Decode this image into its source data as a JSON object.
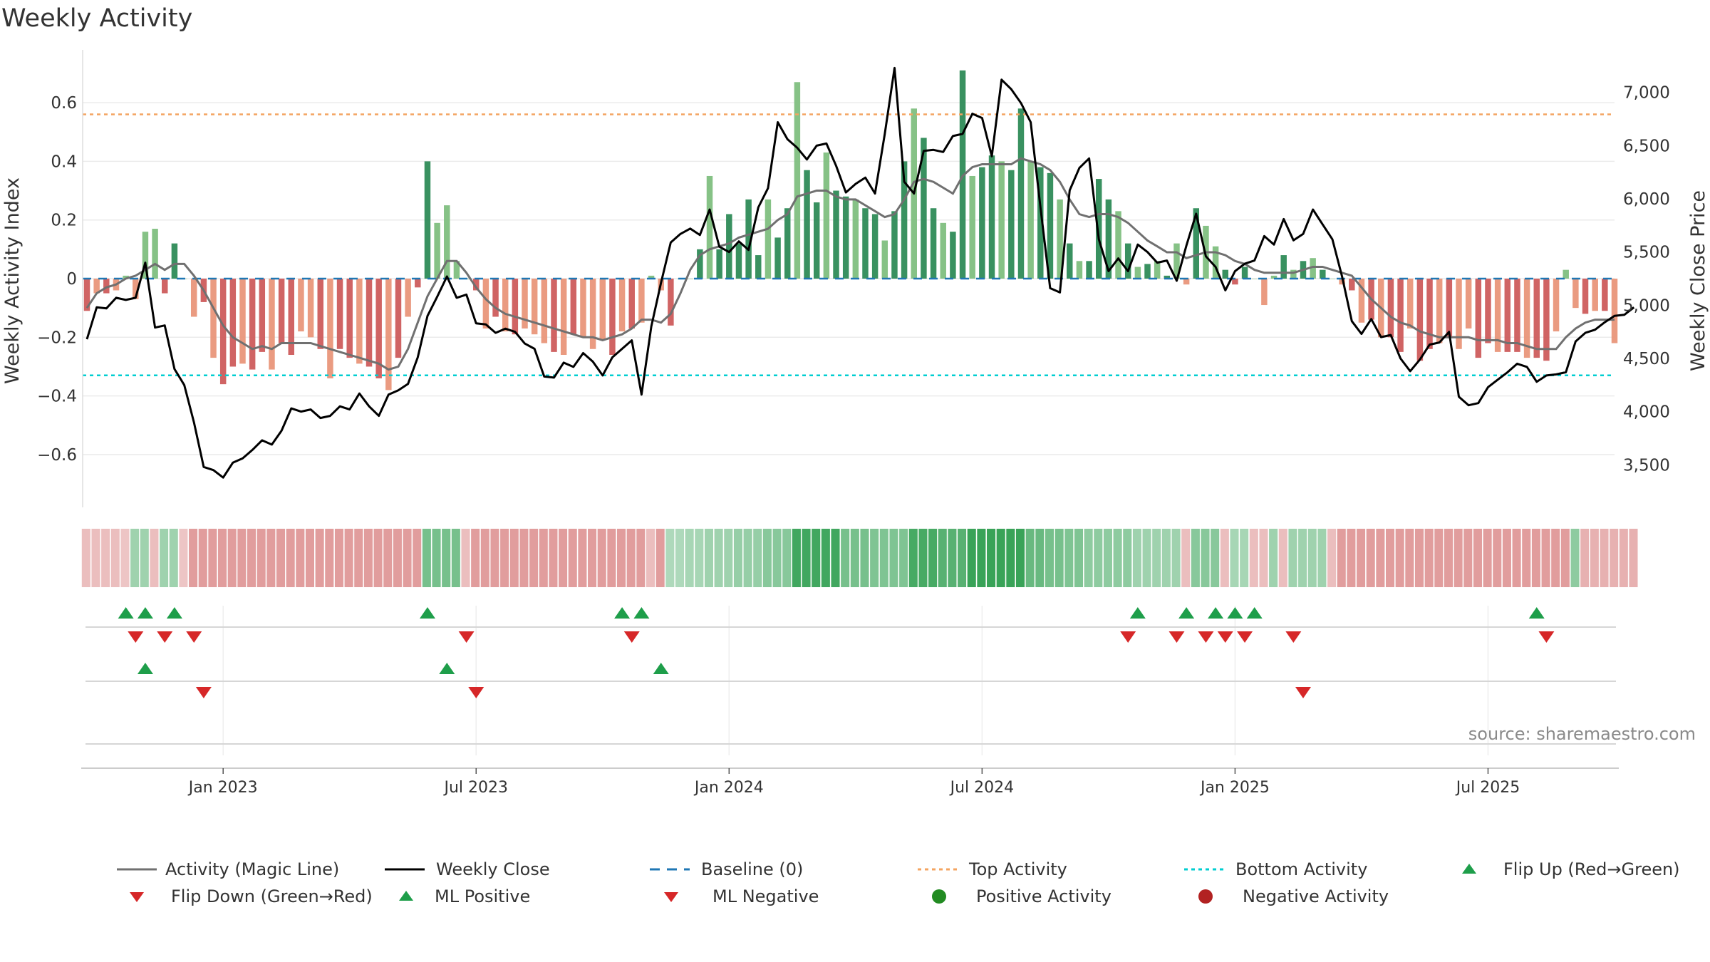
{
  "title": "Weekly Activity",
  "source": "source: sharemaestro.com",
  "colors": {
    "green_dark": "#2e8b57",
    "green_light": "#7fbf7f",
    "red_dark": "#cd5c5c",
    "red_light": "#e9967a",
    "magic_line": "#707070",
    "close_line": "#000000",
    "baseline": "#1f77b4",
    "top": "#f4a460",
    "bottom": "#00ced1",
    "marker_up": "#1e9e4a",
    "marker_down": "#d62728",
    "neg_dot": "#b22222"
  },
  "chart_data": {
    "type": "bar",
    "title": "Weekly Activity",
    "ylabel": "Weekly Activity Index",
    "ylabel_right": "Weekly Close Price",
    "ylim": [
      -0.78,
      0.78
    ],
    "ylim_right": [
      3100,
      7400
    ],
    "left_ticks": [
      {
        "v": 0.6,
        "label": "0.6"
      },
      {
        "v": 0.4,
        "label": "0.4"
      },
      {
        "v": 0.2,
        "label": "0.2"
      },
      {
        "v": 0,
        "label": "0"
      },
      {
        "v": -0.2,
        "label": "−0.2"
      },
      {
        "v": -0.4,
        "label": "−0.4"
      },
      {
        "v": -0.6,
        "label": "−0.6"
      }
    ],
    "right_ticks": [
      {
        "v": 7000,
        "label": "7,000"
      },
      {
        "v": 6500,
        "label": "6,500"
      },
      {
        "v": 6000,
        "label": "6,000"
      },
      {
        "v": 5500,
        "label": "5,500"
      },
      {
        "v": 5000,
        "label": "5,000"
      },
      {
        "v": 4500,
        "label": "4,500"
      },
      {
        "v": 4000,
        "label": "4,000"
      },
      {
        "v": 3500,
        "label": "3,500"
      }
    ],
    "x_ticks": [
      {
        "w": 14,
        "label": "Jan 2023"
      },
      {
        "w": 40,
        "label": "Jul 2023"
      },
      {
        "w": 66,
        "label": "Jan 2024"
      },
      {
        "w": 92,
        "label": "Jul 2024"
      },
      {
        "w": 118,
        "label": "Jan 2025"
      },
      {
        "w": 144,
        "label": "Jul 2025"
      }
    ],
    "top_activity": 0.56,
    "bottom_activity": -0.33,
    "baseline": 0,
    "activity": [
      -0.11,
      -0.05,
      -0.05,
      -0.04,
      0.01,
      -0.07,
      0.16,
      0.17,
      -0.05,
      0.12,
      0,
      -0.13,
      -0.08,
      -0.27,
      -0.36,
      -0.3,
      -0.29,
      -0.31,
      -0.25,
      -0.31,
      -0.22,
      -0.26,
      -0.18,
      -0.2,
      -0.24,
      -0.34,
      -0.24,
      -0.27,
      -0.29,
      -0.3,
      -0.34,
      -0.38,
      -0.27,
      -0.13,
      -0.03,
      0.4,
      0.19,
      0.25,
      0.06,
      0,
      -0.04,
      -0.17,
      -0.13,
      -0.18,
      -0.19,
      -0.17,
      -0.19,
      -0.22,
      -0.25,
      -0.26,
      -0.19,
      -0.2,
      -0.24,
      -0.21,
      -0.26,
      -0.18,
      -0.17,
      -0.15,
      0.01,
      -0.04,
      -0.16,
      0,
      0,
      0.1,
      0.35,
      0.1,
      0.22,
      0.12,
      0.27,
      0.08,
      0.27,
      0.14,
      0.24,
      0.67,
      0.37,
      0.26,
      0.43,
      0.3,
      0.28,
      0.27,
      0.24,
      0.22,
      0.13,
      0.23,
      0.4,
      0.58,
      0.48,
      0.24,
      0.19,
      0.16,
      0.71,
      0.35,
      0.38,
      0.42,
      0.4,
      0.37,
      0.58,
      0.4,
      0.38,
      0.36,
      0.27,
      0.12,
      0.06,
      0.06,
      0.34,
      0.27,
      0.23,
      0.12,
      0.04,
      0.05,
      0.06,
      0.01,
      0.12,
      -0.02,
      0.24,
      0.18,
      0.11,
      0.03,
      -0.02,
      0.04,
      0,
      -0.09,
      0.01,
      0.08,
      0.03,
      0.06,
      0.07,
      0.03,
      0,
      -0.02,
      -0.04,
      -0.15,
      -0.14,
      -0.2,
      -0.2,
      -0.25,
      -0.17,
      -0.28,
      -0.24,
      -0.22,
      -0.2,
      -0.24,
      -0.17,
      -0.27,
      -0.22,
      -0.25,
      -0.25,
      -0.25,
      -0.27,
      -0.27,
      -0.28,
      -0.18,
      0.03,
      -0.1,
      -0.12,
      -0.11,
      -0.11,
      -0.22
    ],
    "magic_line": [
      -0.1,
      -0.05,
      -0.03,
      -0.02,
      0,
      0.01,
      0.03,
      0.05,
      0.03,
      0.05,
      0.05,
      0.01,
      -0.04,
      -0.1,
      -0.16,
      -0.2,
      -0.22,
      -0.24,
      -0.23,
      -0.24,
      -0.22,
      -0.22,
      -0.22,
      -0.22,
      -0.23,
      -0.24,
      -0.25,
      -0.26,
      -0.27,
      -0.28,
      -0.29,
      -0.31,
      -0.3,
      -0.24,
      -0.15,
      -0.06,
      0,
      0.06,
      0.06,
      0.02,
      -0.03,
      -0.07,
      -0.1,
      -0.12,
      -0.13,
      -0.14,
      -0.15,
      -0.16,
      -0.17,
      -0.18,
      -0.19,
      -0.2,
      -0.2,
      -0.21,
      -0.2,
      -0.19,
      -0.17,
      -0.14,
      -0.14,
      -0.15,
      -0.12,
      -0.05,
      0.03,
      0.08,
      0.1,
      0.11,
      0.12,
      0.14,
      0.15,
      0.16,
      0.17,
      0.2,
      0.22,
      0.28,
      0.29,
      0.3,
      0.3,
      0.28,
      0.27,
      0.27,
      0.25,
      0.23,
      0.21,
      0.22,
      0.27,
      0.33,
      0.34,
      0.33,
      0.31,
      0.29,
      0.35,
      0.38,
      0.39,
      0.39,
      0.39,
      0.39,
      0.41,
      0.4,
      0.39,
      0.37,
      0.33,
      0.27,
      0.22,
      0.21,
      0.22,
      0.22,
      0.21,
      0.19,
      0.16,
      0.13,
      0.11,
      0.09,
      0.09,
      0.07,
      0.08,
      0.09,
      0.09,
      0.08,
      0.06,
      0.05,
      0.03,
      0.02,
      0.02,
      0.02,
      0.02,
      0.03,
      0.04,
      0.04,
      0.03,
      0.02,
      0.01,
      -0.03,
      -0.07,
      -0.1,
      -0.13,
      -0.15,
      -0.16,
      -0.18,
      -0.19,
      -0.2,
      -0.2,
      -0.2,
      -0.2,
      -0.21,
      -0.21,
      -0.21,
      -0.22,
      -0.22,
      -0.23,
      -0.24,
      -0.24,
      -0.24,
      -0.2,
      -0.17,
      -0.15,
      -0.14,
      -0.14,
      -0.14
    ],
    "weekly_close": [
      4680,
      4980,
      4970,
      5070,
      5050,
      5070,
      5400,
      4790,
      4810,
      4400,
      4250,
      3900,
      3480,
      3450,
      3380,
      3520,
      3560,
      3640,
      3730,
      3690,
      3820,
      4030,
      4000,
      4020,
      3940,
      3960,
      4050,
      4020,
      4170,
      4050,
      3960,
      4160,
      4200,
      4260,
      4510,
      4900,
      5080,
      5270,
      5070,
      5100,
      4830,
      4820,
      4740,
      4780,
      4750,
      4640,
      4590,
      4330,
      4320,
      4460,
      4420,
      4550,
      4470,
      4340,
      4510,
      4590,
      4670,
      4160,
      4800,
      5210,
      5590,
      5670,
      5720,
      5660,
      5900,
      5550,
      5500,
      5600,
      5520,
      5920,
      6100,
      6720,
      6560,
      6480,
      6370,
      6500,
      6520,
      6310,
      6060,
      6140,
      6200,
      6050,
      6610,
      7230,
      6160,
      6050,
      6450,
      6460,
      6440,
      6590,
      6610,
      6800,
      6760,
      6400,
      7120,
      7030,
      6900,
      6720,
      5920,
      5160,
      5120,
      6080,
      6290,
      6380,
      5620,
      5320,
      5440,
      5320,
      5570,
      5500,
      5400,
      5420,
      5230,
      5560,
      5860,
      5460,
      5360,
      5140,
      5320,
      5390,
      5420,
      5650,
      5570,
      5810,
      5610,
      5670,
      5900,
      5760,
      5620,
      5270,
      4850,
      4730,
      4870,
      4700,
      4720,
      4500,
      4380,
      4490,
      4630,
      4650,
      4750,
      4140,
      4060,
      4080,
      4230,
      4300,
      4370,
      4450,
      4420,
      4280,
      4340,
      4350,
      4370,
      4660,
      4740,
      4770,
      4840,
      4900,
      4910,
      4980
    ],
    "heat_strip": [
      -0.25,
      -0.25,
      -0.25,
      -0.25,
      -0.2,
      0.35,
      0.35,
      -0.25,
      0.35,
      0.35,
      -0.2,
      -0.5,
      -0.5,
      -0.5,
      -0.5,
      -0.5,
      -0.5,
      -0.5,
      -0.5,
      -0.5,
      -0.5,
      -0.5,
      -0.5,
      -0.5,
      -0.5,
      -0.5,
      -0.5,
      -0.5,
      -0.5,
      -0.5,
      -0.5,
      -0.5,
      -0.5,
      -0.5,
      -0.5,
      0.6,
      0.6,
      0.6,
      0.6,
      -0.25,
      -0.5,
      -0.5,
      -0.5,
      -0.5,
      -0.5,
      -0.5,
      -0.5,
      -0.5,
      -0.5,
      -0.5,
      -0.5,
      -0.5,
      -0.5,
      -0.5,
      -0.5,
      -0.5,
      -0.5,
      -0.5,
      -0.25,
      -0.5,
      0.25,
      0.25,
      0.3,
      0.3,
      0.35,
      0.35,
      0.35,
      0.4,
      0.4,
      0.4,
      0.5,
      0.5,
      0.5,
      0.95,
      0.95,
      0.95,
      0.95,
      0.95,
      0.6,
      0.6,
      0.6,
      0.55,
      0.55,
      0.55,
      0.55,
      0.9,
      0.9,
      0.9,
      0.8,
      0.8,
      0.8,
      1.0,
      1.0,
      1.0,
      1.0,
      1.0,
      1.0,
      0.7,
      0.7,
      0.6,
      0.6,
      0.55,
      0.55,
      0.45,
      0.45,
      0.45,
      0.45,
      0.45,
      0.35,
      0.35,
      0.35,
      0.35,
      0.35,
      -0.25,
      0.5,
      0.5,
      0.5,
      -0.25,
      0.3,
      0.3,
      -0.25,
      -0.25,
      0.35,
      -0.25,
      0.35,
      0.35,
      0.35,
      0.35,
      -0.25,
      -0.5,
      -0.5,
      -0.5,
      -0.5,
      -0.5,
      -0.5,
      -0.5,
      -0.5,
      -0.5,
      -0.5,
      -0.5,
      -0.5,
      -0.5,
      -0.5,
      -0.5,
      -0.5,
      -0.5,
      -0.5,
      -0.5,
      -0.5,
      -0.5,
      -0.5,
      -0.5,
      -0.5,
      0.45,
      -0.35,
      -0.35,
      -0.35,
      -0.35,
      -0.35,
      -0.35
    ],
    "flip_up": [
      4,
      6,
      9,
      35,
      55,
      57,
      108,
      113,
      116,
      118,
      120,
      149
    ],
    "flip_down": [
      5,
      8,
      11,
      39,
      56,
      107,
      112,
      115,
      117,
      119,
      124,
      150
    ],
    "ml_positive": [
      6,
      37,
      59
    ],
    "ml_negative": [
      12,
      40,
      125
    ],
    "positive_activity": [],
    "negative_activity": []
  },
  "legend": [
    {
      "key": "magic",
      "label": "Activity (Magic Line)"
    },
    {
      "key": "close",
      "label": "Weekly Close"
    },
    {
      "key": "baseline",
      "label": "Baseline (0)"
    },
    {
      "key": "top",
      "label": "Top Activity"
    },
    {
      "key": "bottom",
      "label": "Bottom Activity"
    },
    {
      "key": "flip_up",
      "label": "Flip Up (Red→Green)"
    },
    {
      "key": "flip_down",
      "label": "Flip Down (Green→Red)"
    },
    {
      "key": "ml_pos",
      "label": "ML Positive"
    },
    {
      "key": "ml_neg",
      "label": "ML Negative"
    },
    {
      "key": "pos_act",
      "label": "Positive Activity"
    },
    {
      "key": "neg_act",
      "label": "Negative Activity"
    }
  ]
}
